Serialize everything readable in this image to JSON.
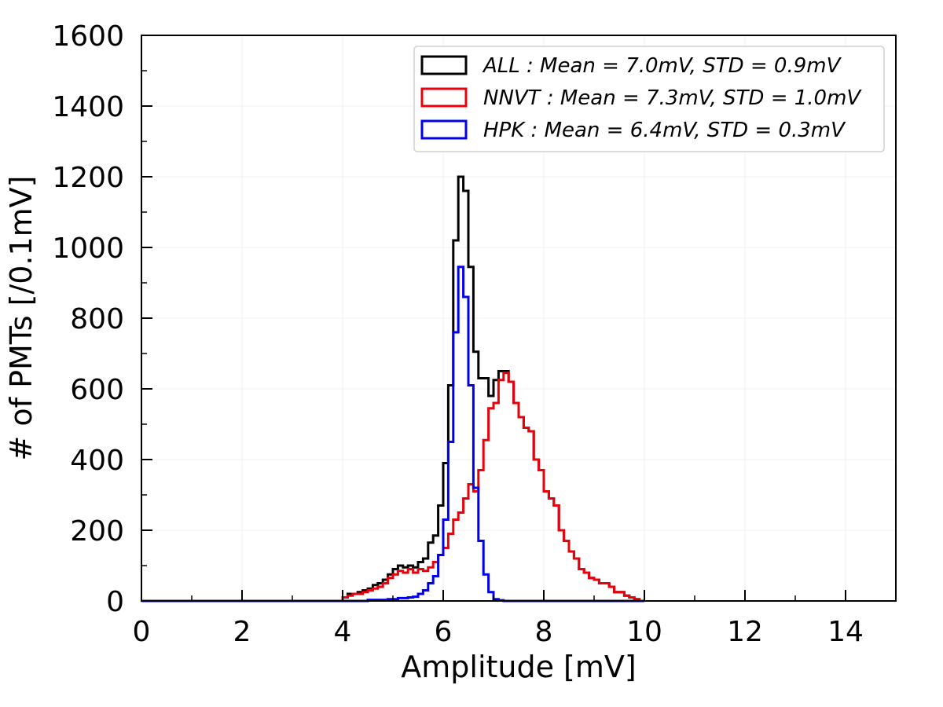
{
  "chart_data": {
    "type": "histogram-step",
    "title": "",
    "xlabel": "Amplitude [mV]",
    "ylabel": "# of PMTs [/0.1mV]",
    "xlim": [
      0,
      15
    ],
    "ylim": [
      0,
      1600
    ],
    "xticks": [
      0,
      2,
      4,
      6,
      8,
      10,
      12,
      14
    ],
    "yticks": [
      0,
      200,
      400,
      600,
      800,
      1000,
      1200,
      1400,
      1600
    ],
    "xtick_labels": [
      "0",
      "2",
      "4",
      "6",
      "8",
      "10",
      "12",
      "14"
    ],
    "ytick_labels": [
      "0",
      "200",
      "400",
      "600",
      "800",
      "1000",
      "1200",
      "1400",
      "1600"
    ],
    "grid": true,
    "legend_position": "top-right",
    "bin_start": 4.0,
    "bin_width": 0.1,
    "series": [
      {
        "name": "ALL",
        "legend_label": "ALL : Mean = 7.0mV, STD = 0.9mV",
        "color": "#000000",
        "values": [
          10,
          20,
          20,
          25,
          30,
          35,
          45,
          50,
          60,
          75,
          90,
          100,
          95,
          100,
          95,
          110,
          120,
          165,
          185,
          270,
          390,
          610,
          1020,
          1200,
          1160,
          945,
          705,
          630,
          630,
          580,
          625,
          650,
          650,
          620,
          560,
          520,
          490,
          480,
          400,
          370,
          310,
          290,
          270,
          200,
          170,
          140,
          120,
          90,
          80,
          65,
          60,
          50,
          50,
          40,
          25,
          25,
          15,
          10,
          5,
          0
        ]
      },
      {
        "name": "NNVT",
        "legend_label": "NNVT : Mean = 7.3mV, STD = 1.0mV",
        "color": "#e8000b",
        "values": [
          10,
          15,
          20,
          20,
          25,
          30,
          35,
          40,
          50,
          65,
          75,
          85,
          80,
          90,
          80,
          90,
          85,
          95,
          110,
          130,
          150,
          190,
          230,
          250,
          290,
          330,
          310,
          370,
          455,
          545,
          560,
          625,
          645,
          620,
          560,
          520,
          490,
          480,
          400,
          370,
          310,
          290,
          270,
          200,
          170,
          140,
          120,
          90,
          80,
          65,
          60,
          50,
          50,
          40,
          25,
          25,
          15,
          10,
          5,
          0
        ]
      },
      {
        "name": "HPK",
        "legend_label": "HPK : Mean = 6.4mV, STD = 0.3mV",
        "color": "#0000ee",
        "values": [
          0,
          0,
          0,
          0,
          0,
          3,
          3,
          3,
          3,
          5,
          5,
          8,
          8,
          10,
          12,
          20,
          30,
          50,
          70,
          130,
          230,
          450,
          760,
          945,
          860,
          610,
          320,
          170,
          75,
          25,
          5,
          2,
          0,
          0,
          0,
          0,
          0,
          0,
          0,
          0,
          0,
          0,
          0,
          0,
          0,
          0,
          0,
          0,
          0,
          0,
          0,
          0,
          0,
          0,
          0,
          0,
          0,
          0,
          0,
          0
        ]
      }
    ]
  }
}
